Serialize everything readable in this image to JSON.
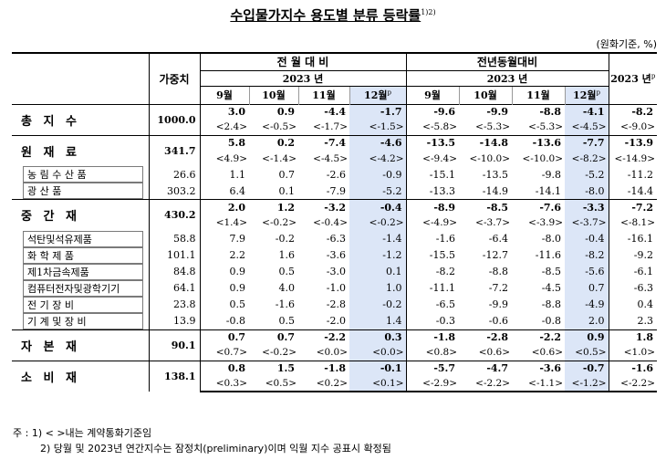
{
  "title": "수입물가지수 용도별 분류 등락률",
  "title_sup": "1)2)",
  "unit": "(원화기준, %)",
  "headers": {
    "weight": "가중치",
    "mom": "전 월 대 비",
    "yoy": "전년동월대비",
    "year_mom": "2023 년",
    "year_yoy": "2023 년",
    "annual": "2023 년",
    "annual_sup": "p",
    "months": [
      "9월",
      "10월",
      "11월",
      "12월"
    ],
    "p": "p"
  },
  "rows": [
    {
      "name": "총 지 수",
      "weight": "1000.0",
      "level": "major",
      "mom": [
        "3.0",
        "0.9",
        "-4.4",
        "-1.7"
      ],
      "mom_c": [
        "<2.4>",
        "<-0.5>",
        "<-1.7>",
        "<-1.5>"
      ],
      "yoy": [
        "-9.6",
        "-9.9",
        "-8.8",
        "-4.1"
      ],
      "yoy_c": [
        "<-5.8>",
        "<-5.3>",
        "<-5.3>",
        "<-4.5>"
      ],
      "ann": "-8.2",
      "ann_c": "<-9.0>"
    },
    {
      "name": "원 재 료",
      "weight": "341.7",
      "level": "major",
      "mom": [
        "5.8",
        "0.2",
        "-7.4",
        "-4.6"
      ],
      "mom_c": [
        "<4.9>",
        "<-1.4>",
        "<-4.5>",
        "<-4.2>"
      ],
      "yoy": [
        "-13.5",
        "-14.8",
        "-13.6",
        "-7.7"
      ],
      "yoy_c": [
        "<-9.4>",
        "<-10.0>",
        "<-10.0>",
        "<-8.2>"
      ],
      "ann": "-13.9",
      "ann_c": "<-14.9>"
    },
    {
      "name": "농 림 수 산 품",
      "weight": "26.6",
      "level": "minor",
      "mom": [
        "1.1",
        "0.7",
        "-2.6",
        "-0.9"
      ],
      "yoy": [
        "-15.1",
        "-13.5",
        "-9.8",
        "-5.2"
      ],
      "ann": "-11.2"
    },
    {
      "name": "광 산 품",
      "weight": "303.2",
      "level": "minor",
      "mom": [
        "6.4",
        "0.1",
        "-7.9",
        "-5.2"
      ],
      "yoy": [
        "-13.3",
        "-14.9",
        "-14.1",
        "-8.0"
      ],
      "ann": "-14.4"
    },
    {
      "name": "중 간 재",
      "weight": "430.2",
      "level": "major",
      "mom": [
        "2.0",
        "1.2",
        "-3.2",
        "-0.4"
      ],
      "mom_c": [
        "<1.4>",
        "<-0.2>",
        "<-0.4>",
        "<-0.2>"
      ],
      "yoy": [
        "-8.9",
        "-8.5",
        "-7.6",
        "-3.3"
      ],
      "yoy_c": [
        "<-4.9>",
        "<-3.7>",
        "<-3.9>",
        "<-3.7>"
      ],
      "ann": "-7.2",
      "ann_c": "<-8.1>"
    },
    {
      "name": "석탄및석유제품",
      "weight": "58.8",
      "level": "minor",
      "mom": [
        "7.9",
        "-0.2",
        "-6.3",
        "-1.4"
      ],
      "yoy": [
        "-1.6",
        "-6.4",
        "-8.0",
        "-0.4"
      ],
      "ann": "-16.1"
    },
    {
      "name": "화 학 제 품",
      "weight": "101.1",
      "level": "minor",
      "mom": [
        "2.2",
        "1.6",
        "-3.6",
        "-1.2"
      ],
      "yoy": [
        "-15.5",
        "-12.7",
        "-11.6",
        "-8.2"
      ],
      "ann": "-9.2"
    },
    {
      "name": "제1차금속제품",
      "weight": "84.8",
      "level": "minor",
      "mom": [
        "0.9",
        "0.5",
        "-3.0",
        "0.1"
      ],
      "yoy": [
        "-8.2",
        "-8.8",
        "-8.5",
        "-5.6"
      ],
      "ann": "-6.1"
    },
    {
      "name": "컴퓨터전자및광학기기",
      "weight": "64.1",
      "level": "minor",
      "mom": [
        "0.9",
        "4.0",
        "-1.0",
        "1.0"
      ],
      "yoy": [
        "-11.1",
        "-7.2",
        "-4.5",
        "0.7"
      ],
      "ann": "-6.3"
    },
    {
      "name": "전 기 장 비",
      "weight": "23.8",
      "level": "minor",
      "mom": [
        "0.5",
        "-1.6",
        "-2.8",
        "-0.2"
      ],
      "yoy": [
        "-6.5",
        "-9.9",
        "-8.8",
        "-4.9"
      ],
      "ann": "0.4"
    },
    {
      "name": "기 계 및 장 비",
      "weight": "13.9",
      "level": "minor",
      "mom": [
        "-0.8",
        "0.5",
        "-2.0",
        "1.4"
      ],
      "yoy": [
        "-0.3",
        "-0.6",
        "-0.8",
        "2.0"
      ],
      "ann": "2.3"
    },
    {
      "name": "자 본 재",
      "weight": "90.1",
      "level": "major",
      "mom": [
        "0.7",
        "0.7",
        "-2.2",
        "0.3"
      ],
      "mom_c": [
        "<0.7>",
        "<-0.2>",
        "<0.0>",
        "<0.0>"
      ],
      "yoy": [
        "-1.8",
        "-2.8",
        "-2.2",
        "0.9"
      ],
      "yoy_c": [
        "<0.8>",
        "<0.6>",
        "<0.6>",
        "<0.5>"
      ],
      "ann": "1.8",
      "ann_c": "<1.0>"
    },
    {
      "name": "소 비 재",
      "weight": "138.1",
      "level": "major",
      "mom": [
        "0.8",
        "1.5",
        "-1.8",
        "-0.1"
      ],
      "mom_c": [
        "<0.3>",
        "<0.5>",
        "<0.2>",
        "<0.1>"
      ],
      "yoy": [
        "-5.7",
        "-4.7",
        "-3.6",
        "-0.7"
      ],
      "yoy_c": [
        "<-2.9>",
        "<-2.2>",
        "<-1.1>",
        "<-1.2>"
      ],
      "ann": "-1.6",
      "ann_c": "<-2.2>"
    }
  ],
  "notes": [
    "주 : 1) < >내는 계약통화기준임",
    "2) 당월 및 2023년 연간지수는 잠정치(preliminary)이며 익월 지수 공표시 확정됨"
  ]
}
